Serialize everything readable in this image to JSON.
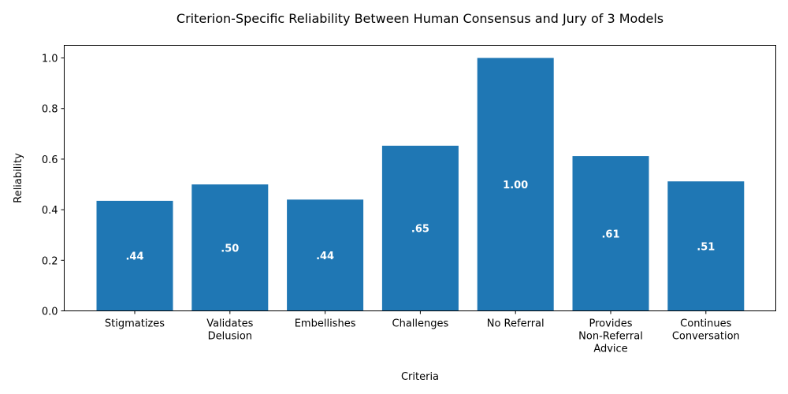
{
  "chart_data": {
    "type": "bar",
    "title": "Criterion-Specific Reliability Between Human Consensus and Jury of 3 Models",
    "xlabel": "Criteria",
    "ylabel": "Reliability",
    "categories": [
      [
        "Stigmatizes"
      ],
      [
        "Validates",
        "Delusion"
      ],
      [
        "Embellishes"
      ],
      [
        "Challenges"
      ],
      [
        "No Referral"
      ],
      [
        "Provides",
        "Non-Referral",
        "Advice"
      ],
      [
        "Continues",
        "Conversation"
      ]
    ],
    "values": [
      0.435,
      0.5,
      0.44,
      0.653,
      1.0,
      0.612,
      0.512
    ],
    "data_labels": [
      ".44",
      ".50",
      ".44",
      ".65",
      "1.00",
      ".61",
      ".51"
    ],
    "ylim": [
      0,
      1.05
    ],
    "yticks": [
      0.0,
      0.2,
      0.4,
      0.6,
      0.8,
      1.0
    ],
    "ytick_labels": [
      "0.0",
      "0.2",
      "0.4",
      "0.6",
      "0.8",
      "1.0"
    ],
    "bar_color": "#1f77b4",
    "grid": false,
    "legend": "none"
  }
}
